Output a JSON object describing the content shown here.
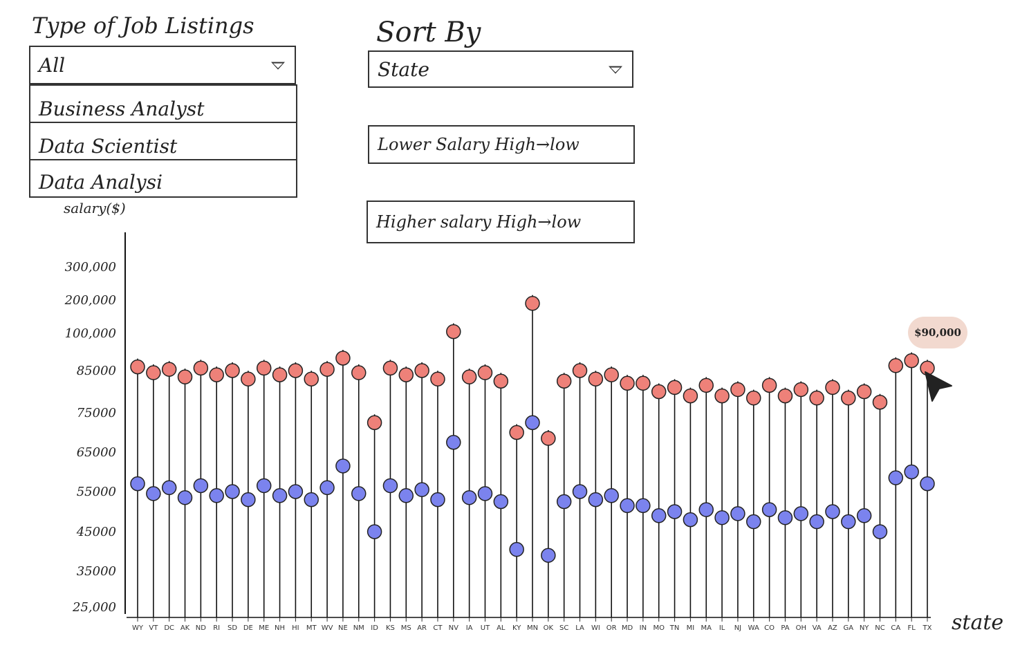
{
  "filters": {
    "job_type_label": "Type of Job Listings",
    "job_type_selected": "All",
    "job_type_options": [
      "Business Analyst",
      "Data Scientist",
      "Data Analysi"
    ],
    "sort_label": "Sort By",
    "sort_selected": "State",
    "sort_lower_button": "Lower Salary High→low",
    "sort_higher_button": "Higher salary High→low"
  },
  "tooltip": {
    "text": "$90,000"
  },
  "colors": {
    "upper": "#ee8179",
    "lower": "#7b83ee",
    "stem": "#111111",
    "tooltip_bg": "#f2d9cf"
  },
  "icons": {
    "dropdown": "chevron-down-icon",
    "cursor": "cursor-arrow-icon"
  },
  "chart_data": {
    "type": "dumbbell",
    "ylabel": "salary($)",
    "xlabel": "state",
    "y_ticks": [
      "300,000",
      "200,000",
      "100,000",
      "85000",
      "75000",
      "65000",
      "55000",
      "45000",
      "35000",
      "25,000"
    ],
    "y_tick_values": [
      300000,
      200000,
      100000,
      85000,
      75000,
      65000,
      55000,
      45000,
      35000,
      25000
    ],
    "categories": [
      "WY",
      "VT",
      "DC",
      "AK",
      "ND",
      "RI",
      "SD",
      "DE",
      "ME",
      "NH",
      "HI",
      "MT",
      "WV",
      "NE",
      "NM",
      "ID",
      "KS",
      "MS",
      "AR",
      "CT",
      "NV",
      "IA",
      "UT",
      "AL",
      "KY",
      "MN",
      "OK",
      "SC",
      "LA",
      "WI",
      "OR",
      "MD",
      "IN",
      "MO",
      "TN",
      "MI",
      "MA",
      "IL",
      "NJ",
      "WA",
      "CO",
      "PA",
      "OH",
      "VA",
      "AZ",
      "GA",
      "NY",
      "NC",
      "CA",
      "FL",
      "TX"
    ],
    "series": [
      {
        "key": "upper",
        "values": [
          86500,
          84500,
          85500,
          83500,
          86000,
          84000,
          85000,
          83000,
          86000,
          84000,
          85000,
          83000,
          85500,
          90000,
          84500,
          72500,
          86000,
          84000,
          85000,
          83000,
          105000,
          83500,
          84500,
          82500,
          70000,
          190000,
          68500,
          82500,
          85000,
          83000,
          84000,
          82000,
          82000,
          80000,
          81000,
          79000,
          81500,
          79000,
          80500,
          78500,
          81500,
          79000,
          80500,
          78500,
          81000,
          78500,
          80000,
          77500,
          87000,
          89000,
          86000
        ]
      },
      {
        "key": "lower",
        "values": [
          57000,
          54500,
          56000,
          53500,
          56500,
          54000,
          55000,
          53000,
          56500,
          54000,
          55000,
          53000,
          56000,
          61500,
          54500,
          45000,
          56500,
          54000,
          55500,
          53000,
          67500,
          53500,
          54500,
          52500,
          40500,
          72500,
          39000,
          52500,
          55000,
          53000,
          54000,
          51500,
          51500,
          49000,
          50000,
          48000,
          50500,
          48500,
          49500,
          47500,
          50500,
          48500,
          49500,
          47500,
          50000,
          47500,
          49000,
          45000,
          58500,
          60000,
          57000
        ]
      }
    ]
  }
}
